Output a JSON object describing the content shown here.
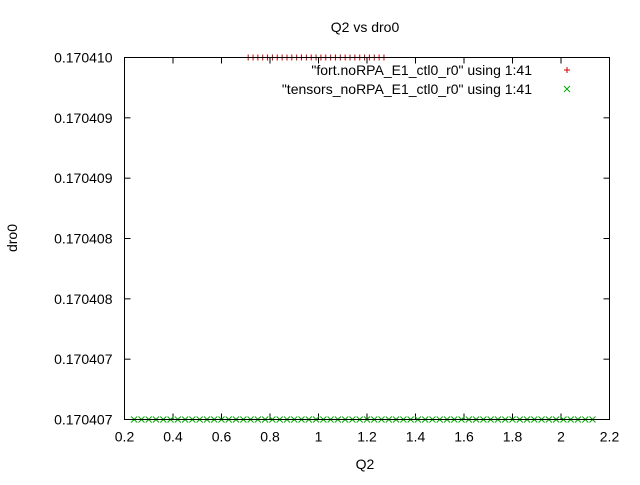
{
  "chart_data": {
    "type": "scatter",
    "title": "Q2 vs dro0",
    "xlabel": "Q2",
    "ylabel": "dro0",
    "xlim": [
      0.2,
      2.2
    ],
    "ylim": [
      0.170407,
      0.17041
    ],
    "xticks": [
      0.2,
      0.4,
      0.6,
      0.8,
      1.0,
      1.2,
      1.4,
      1.6,
      1.8,
      2.0,
      2.2
    ],
    "xtick_labels": [
      "0.2",
      "0.4",
      "0.6",
      "0.8",
      "1",
      "1.2",
      "1.4",
      "1.6",
      "1.8",
      "2",
      "2.2"
    ],
    "yticks": [
      0.170407,
      0.1704075,
      0.170408,
      0.1704085,
      0.170409,
      0.1704095,
      0.17041
    ],
    "ytick_labels": [
      "0.170407",
      "0.170407",
      "0.170408",
      "0.170408",
      "0.170409",
      "0.170409",
      "0.170410"
    ],
    "grid": false,
    "legend_position": "top-right",
    "series": [
      {
        "name": "\"fort.noRPA_E1_ctl0_r0\" using 1:41",
        "marker": "plus",
        "color": "#cc0000",
        "x": [
          0.71,
          0.73,
          0.75,
          0.77,
          0.79,
          0.81,
          0.83,
          0.85,
          0.87,
          0.89,
          0.91,
          0.93,
          0.95,
          0.97,
          0.99,
          1.01,
          1.03,
          1.05,
          1.07,
          1.09,
          1.11,
          1.13,
          1.15,
          1.17,
          1.19,
          1.21,
          1.23,
          1.25,
          1.27
        ],
        "y": [
          0.17041,
          0.17041,
          0.17041,
          0.17041,
          0.17041,
          0.17041,
          0.17041,
          0.17041,
          0.17041,
          0.17041,
          0.17041,
          0.17041,
          0.17041,
          0.17041,
          0.17041,
          0.17041,
          0.17041,
          0.17041,
          0.17041,
          0.17041,
          0.17041,
          0.17041,
          0.17041,
          0.17041,
          0.17041,
          0.17041,
          0.17041,
          0.17041,
          0.17041
        ]
      },
      {
        "name": "\"tensors_noRPA_E1_ctl0_r0\" using 1:41",
        "marker": "x",
        "color": "#00aa00",
        "x": [
          0.24,
          0.27,
          0.3,
          0.33,
          0.36,
          0.39,
          0.42,
          0.45,
          0.48,
          0.51,
          0.54,
          0.57,
          0.6,
          0.63,
          0.66,
          0.69,
          0.72,
          0.75,
          0.78,
          0.81,
          0.84,
          0.87,
          0.9,
          0.93,
          0.96,
          0.99,
          1.02,
          1.05,
          1.08,
          1.11,
          1.14,
          1.17,
          1.2,
          1.23,
          1.26,
          1.29,
          1.32,
          1.35,
          1.38,
          1.41,
          1.44,
          1.47,
          1.5,
          1.53,
          1.56,
          1.59,
          1.62,
          1.65,
          1.68,
          1.71,
          1.74,
          1.77,
          1.8,
          1.83,
          1.86,
          1.89,
          1.92,
          1.95,
          1.98,
          2.01,
          2.04,
          2.07,
          2.1,
          2.13
        ],
        "y": [
          0.170407,
          0.170407,
          0.170407,
          0.170407,
          0.170407,
          0.170407,
          0.170407,
          0.170407,
          0.170407,
          0.170407,
          0.170407,
          0.170407,
          0.170407,
          0.170407,
          0.170407,
          0.170407,
          0.170407,
          0.170407,
          0.170407,
          0.170407,
          0.170407,
          0.170407,
          0.170407,
          0.170407,
          0.170407,
          0.170407,
          0.170407,
          0.170407,
          0.170407,
          0.170407,
          0.170407,
          0.170407,
          0.170407,
          0.170407,
          0.170407,
          0.170407,
          0.170407,
          0.170407,
          0.170407,
          0.170407,
          0.170407,
          0.170407,
          0.170407,
          0.170407,
          0.170407,
          0.170407,
          0.170407,
          0.170407,
          0.170407,
          0.170407,
          0.170407,
          0.170407,
          0.170407,
          0.170407,
          0.170407,
          0.170407,
          0.170407,
          0.170407,
          0.170407,
          0.170407,
          0.170407,
          0.170407,
          0.170407,
          0.170407
        ]
      }
    ]
  }
}
